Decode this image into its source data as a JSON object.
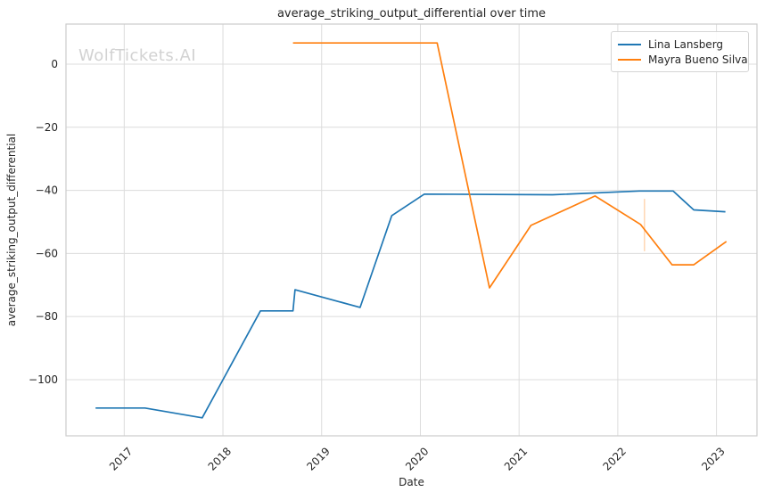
{
  "title": "average_striking_output_differential over time",
  "watermark": "WolfTickets.AI",
  "styles": {
    "background": "#ffffff",
    "grid_color": "#dcdcdc",
    "spine_color": "#cccccc",
    "text_color": "#262626",
    "watermark_color": "#d2d2d2"
  },
  "chart_data": {
    "type": "line",
    "title": "average_striking_output_differential over time",
    "xlabel": "Date",
    "ylabel": "average_striking_output_differential",
    "x_unit": "year (decimal)",
    "xlim": [
      2016.41,
      2023.41
    ],
    "ylim": [
      -117.8,
      12.7
    ],
    "x_ticks": [
      2017,
      2018,
      2019,
      2020,
      2021,
      2022,
      2023
    ],
    "y_ticks": [
      0,
      -20,
      -40,
      -60,
      -80,
      -100
    ],
    "grid": true,
    "legend_position": "upper right",
    "series": [
      {
        "name": "Lina Lansberg",
        "color": "#1f77b4",
        "points": [
          [
            2016.71,
            -109.0
          ],
          [
            2017.21,
            -109.0
          ],
          [
            2017.79,
            -112.1
          ],
          [
            2018.38,
            -78.2
          ],
          [
            2018.71,
            -78.2
          ],
          [
            2018.73,
            -71.5
          ],
          [
            2019.39,
            -77.1
          ],
          [
            2019.71,
            -48.0
          ],
          [
            2020.04,
            -41.2
          ],
          [
            2021.34,
            -41.4
          ],
          [
            2022.22,
            -40.2
          ],
          [
            2022.56,
            -40.2
          ],
          [
            2022.77,
            -46.2
          ],
          [
            2023.09,
            -46.8
          ]
        ]
      },
      {
        "name": "Mayra Bueno Silva",
        "color": "#ff7f0e",
        "points": [
          [
            2018.71,
            6.7
          ],
          [
            2020.17,
            6.7
          ],
          [
            2020.7,
            -70.9
          ],
          [
            2021.12,
            -51.1
          ],
          [
            2021.77,
            -41.8
          ],
          [
            2022.23,
            -50.8
          ],
          [
            2022.55,
            -63.6
          ],
          [
            2022.77,
            -63.6
          ],
          [
            2023.1,
            -56.2
          ]
        ],
        "error_bars": [
          {
            "x": 2022.27,
            "y_low": -59.3,
            "y_high": -42.7,
            "opacity": 0.32
          }
        ]
      }
    ]
  }
}
